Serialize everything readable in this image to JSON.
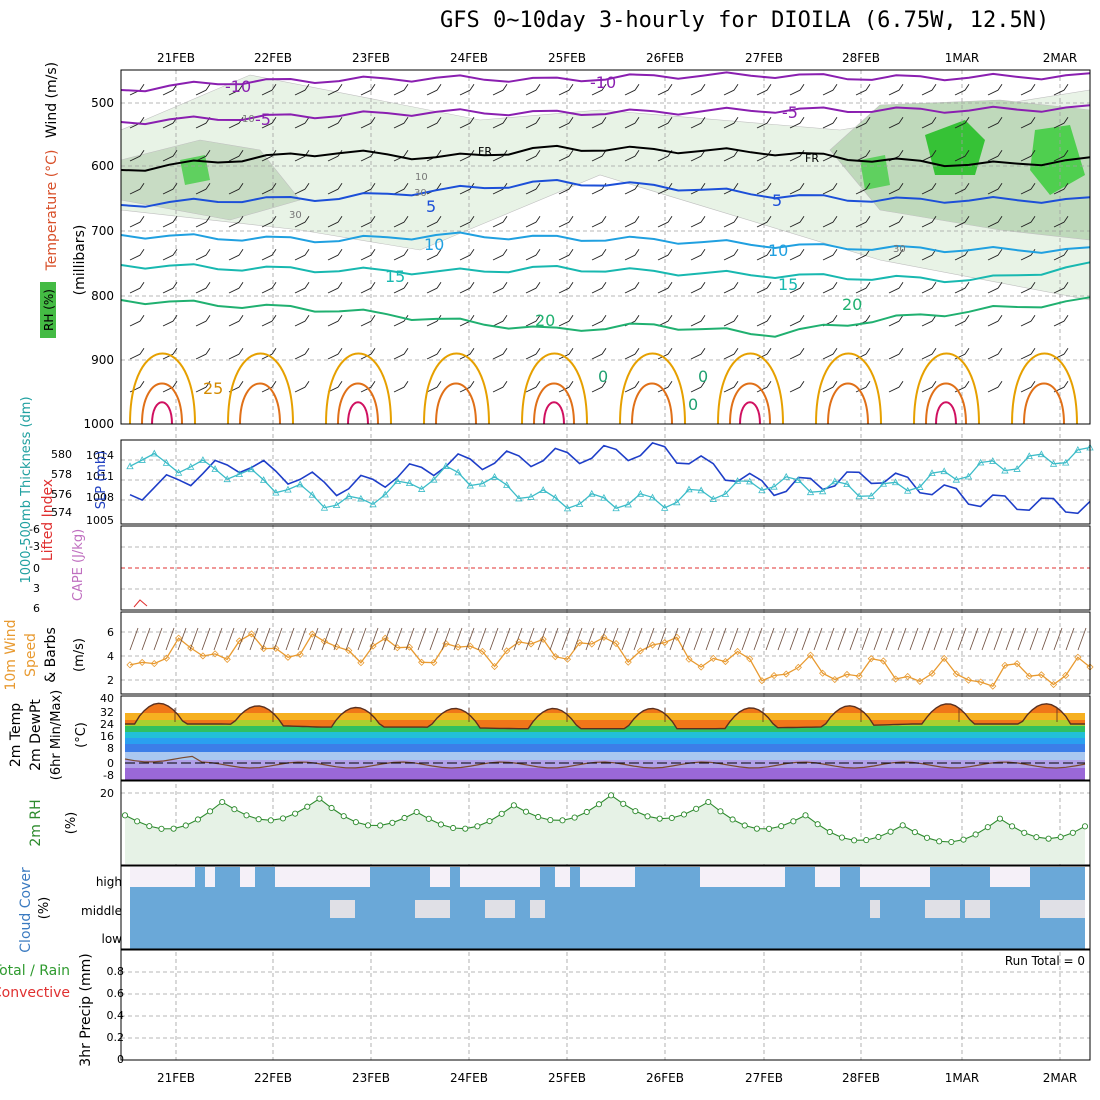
{
  "title": "GFS 0~10day 3-hourly for DIOILA (6.75W, 12.5N)",
  "dates": [
    "21FEB",
    "22FEB",
    "23FEB",
    "24FEB",
    "25FEB",
    "26FEB",
    "27FEB",
    "28FEB",
    "1MAR",
    "2MAR"
  ],
  "colors": {
    "grid": "#a0a0a0",
    "slp": "#1e3ec8",
    "thickness": "#3cbcc8",
    "wind": "#e89a30",
    "rh2m": "#2e8b2e",
    "rh2m_fill": "#e6f2e6",
    "cloud": "#6aa8d8",
    "clear": "#f5f0f8",
    "tmax": "#6b3a2a"
  },
  "upper": {
    "ylabel_wind": "Wind (m/s)",
    "ylabel_temp": "Temperature (°C)",
    "ylabel_rh": "RH (%)",
    "ylabel_unit": "(millibars)",
    "pressure_ticks": [
      "500",
      "600",
      "700",
      "800",
      "900",
      "1000"
    ],
    "labels": {
      "neg10a": "-10",
      "neg10b": "-10",
      "neg5a": "-5",
      "neg5b": "-5",
      "fr1": "FR",
      "fr2": "FR",
      "t5a": "5",
      "t5b": "5",
      "t10a": "10",
      "t10b": "10",
      "t15a": "15",
      "t15b": "15",
      "t20a": "20",
      "t20b": "20",
      "t25": "25",
      "rh10a": "10",
      "rh10b": "10",
      "rh30a": "30",
      "rh30b": "30",
      "rh30c": "30",
      "z0a": "0",
      "z0b": "0",
      "z0c": "0"
    }
  },
  "thickness_panel": {
    "ylabel_thick": "1000-500mb Thickness (dm)",
    "ylabel_slp": "SLP (mb)",
    "thick_ticks": [
      "580",
      "578",
      "576",
      "574"
    ],
    "slp_ticks": [
      "1014",
      "1011",
      "1008",
      "1005"
    ]
  },
  "li_panel": {
    "ylabel_li": "Lifted Index",
    "ylabel_cape": "CAPE (J/kg)",
    "ticks": [
      "-6",
      "-3",
      "0",
      "3",
      "6"
    ]
  },
  "wind_panel": {
    "ylabel1": "10m Wind",
    "ylabel2": "Speed",
    "ylabel3": "& Barbs",
    "unit": "(m/s)",
    "ticks": [
      "6",
      "4",
      "2"
    ]
  },
  "temp_panel": {
    "ylabel1": "2m Temp",
    "ylabel2": "2m DewPt",
    "ylabel3": "(6hr Min/Max)",
    "unit": "(°C)",
    "ticks": [
      "40",
      "32",
      "24",
      "16",
      "8",
      "0",
      "-8"
    ]
  },
  "rh_panel": {
    "ylabel": "2m RH",
    "unit": "(%)",
    "ticks": [
      "20"
    ]
  },
  "cloud_panel": {
    "ylabel": "Cloud Cover",
    "unit": "(%)",
    "levels": [
      "high",
      "middle",
      "low"
    ]
  },
  "precip_panel": {
    "ylabel1": "3hr Precip (mm)",
    "ylabel2": "Total / Rain",
    "ylabel3": "Convective",
    "run_total": "Run Total = 0",
    "ticks": [
      "0.8",
      "0.6",
      "0.4",
      "0.2",
      "0"
    ]
  },
  "chart_data": [
    {
      "type": "line",
      "title": "SLP (mb)",
      "x": [
        "21FEB",
        "22FEB",
        "23FEB",
        "24FEB",
        "25FEB",
        "26FEB",
        "27FEB",
        "28FEB",
        "1MAR",
        "2MAR"
      ],
      "series": [
        {
          "name": "SLP (mb)",
          "values": [
            1008,
            1013,
            1009,
            1013,
            1014,
            1015,
            1009,
            1011,
            1007,
            1006
          ]
        },
        {
          "name": "1000-500mb Thickness (dm)",
          "values": [
            579.5,
            578,
            574.5,
            578,
            575,
            575,
            577,
            576,
            578.5,
            580
          ]
        }
      ],
      "ylim_slp": [
        1004,
        1016
      ],
      "ylim_thick": [
        573,
        581
      ]
    },
    {
      "type": "line",
      "title": "10m Wind Speed & Barbs (m/s)",
      "x": [
        "21FEB",
        "22FEB",
        "23FEB",
        "24FEB",
        "25FEB",
        "26FEB",
        "27FEB",
        "28FEB",
        "1MAR",
        "2MAR"
      ],
      "values": [
        4,
        5,
        5,
        4.5,
        5,
        5,
        3,
        3,
        2.5,
        3
      ],
      "ylim": [
        1,
        8
      ]
    },
    {
      "type": "area",
      "title": "2m Temp (°C)",
      "x": [
        "21FEB",
        "22FEB",
        "23FEB",
        "24FEB",
        "25FEB",
        "26FEB",
        "27FEB",
        "28FEB",
        "1MAR",
        "2MAR"
      ],
      "tmax": [
        38,
        36,
        35,
        34,
        34,
        34,
        34,
        35,
        37,
        37
      ],
      "tmin": [
        24,
        24,
        22,
        22,
        21,
        21,
        21,
        22,
        24,
        24
      ],
      "dewpt": [
        2,
        -2,
        -3,
        -3,
        -4,
        -3,
        -3,
        -2,
        -2,
        -3
      ],
      "ylim": [
        -12,
        42
      ]
    },
    {
      "type": "line",
      "title": "2m RH (%)",
      "x": [
        "21FEB",
        "22FEB",
        "23FEB",
        "24FEB",
        "25FEB",
        "26FEB",
        "27FEB",
        "28FEB",
        "1MAR",
        "2MAR"
      ],
      "values": [
        14,
        18,
        19,
        15,
        17,
        20,
        18,
        14,
        11,
        13
      ],
      "ylim": [
        0,
        24
      ]
    },
    {
      "type": "line",
      "title": "3hr Precip (mm)",
      "x": [
        "21FEB",
        "22FEB",
        "23FEB",
        "24FEB",
        "25FEB",
        "26FEB",
        "27FEB",
        "28FEB",
        "1MAR",
        "2MAR"
      ],
      "values": [
        0,
        0,
        0,
        0,
        0,
        0,
        0,
        0,
        0,
        0
      ],
      "ylim": [
        0,
        1
      ]
    }
  ]
}
